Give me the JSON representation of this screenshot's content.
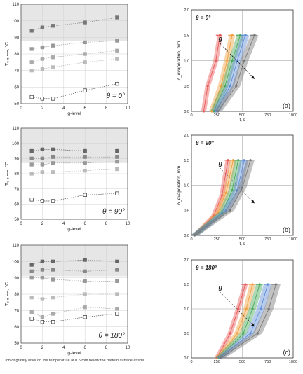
{
  "left_panels": [
    {
      "theta_label": "θ = 0°",
      "ylabel": "T₀.₅ ₘₘ, °C",
      "xlabel": "g-level",
      "yticks": [
        "50",
        "60",
        "70",
        "80",
        "90",
        "100",
        "110"
      ],
      "xticks": [
        "0",
        "2",
        "4",
        "6",
        "8",
        "10"
      ],
      "ylim": [
        50,
        110
      ],
      "xlim": [
        0,
        10
      ],
      "shade_from": 88,
      "series": [
        {
          "x": [
            1,
            2,
            3,
            6,
            9
          ],
          "y": [
            94,
            96,
            97,
            99,
            102
          ],
          "color": "#777777"
        },
        {
          "x": [
            1,
            2,
            3,
            6,
            9
          ],
          "y": [
            83,
            84,
            85,
            87,
            88
          ],
          "color": "#999999"
        },
        {
          "x": [
            1,
            2,
            3,
            6,
            9
          ],
          "y": [
            75,
            77,
            78,
            80,
            82
          ],
          "color": "#aaaaaa"
        },
        {
          "x": [
            1,
            2,
            3,
            6,
            9
          ],
          "y": [
            70,
            71,
            72,
            75,
            77
          ],
          "color": "#bbbbbb"
        },
        {
          "x": [
            1,
            2,
            3,
            6,
            9
          ],
          "y": [
            54,
            53,
            53,
            58,
            62
          ],
          "color": "#555555",
          "hollow": true
        }
      ]
    },
    {
      "theta_label": "θ = 90°",
      "ylabel": "T₀.₅ ₘₘ, °C",
      "xlabel": "g-level",
      "yticks": [
        "50",
        "60",
        "70",
        "80",
        "90",
        "100",
        "110"
      ],
      "xticks": [
        "0",
        "2",
        "4",
        "6",
        "8",
        "10"
      ],
      "ylim": [
        50,
        110
      ],
      "xlim": [
        0,
        10
      ],
      "shade_from": 87,
      "series": [
        {
          "x": [
            1,
            2,
            3,
            6,
            9
          ],
          "y": [
            95,
            96,
            96,
            95,
            95
          ],
          "color": "#666666"
        },
        {
          "x": [
            1,
            2,
            3,
            6,
            9
          ],
          "y": [
            90,
            90,
            91,
            91,
            91
          ],
          "color": "#888888"
        },
        {
          "x": [
            1,
            2,
            3,
            6,
            9
          ],
          "y": [
            86,
            86,
            87,
            87,
            88
          ],
          "color": "#999999"
        },
        {
          "x": [
            1,
            2,
            3,
            6,
            9
          ],
          "y": [
            80,
            81,
            81,
            82,
            83
          ],
          "color": "#bbbbbb"
        },
        {
          "x": [
            1,
            2,
            3,
            6,
            9
          ],
          "y": [
            63,
            62,
            62,
            66,
            67
          ],
          "color": "#555555",
          "hollow": true
        }
      ]
    },
    {
      "theta_label": "θ = 180°",
      "ylabel": "T₀.₅ ₘₘ, °C",
      "xlabel": "g-level",
      "yticks": [
        "50",
        "60",
        "70",
        "80",
        "90",
        "100",
        "110"
      ],
      "xticks": [
        "0",
        "2",
        "4",
        "6",
        "8",
        "10"
      ],
      "ylim": [
        50,
        110
      ],
      "xlim": [
        0,
        10
      ],
      "shade_from": 91,
      "series": [
        {
          "x": [
            1,
            2,
            3,
            6,
            9
          ],
          "y": [
            98,
            100,
            100,
            101,
            100
          ],
          "color": "#666666"
        },
        {
          "x": [
            1,
            2,
            3,
            6,
            9
          ],
          "y": [
            94,
            95,
            95,
            94,
            95
          ],
          "color": "#888888"
        },
        {
          "x": [
            1,
            2,
            3,
            6,
            9
          ],
          "y": [
            90,
            90,
            89,
            88,
            88
          ],
          "color": "#999999"
        },
        {
          "x": [
            1,
            2,
            3,
            6,
            9
          ],
          "y": [
            78,
            77,
            78,
            80,
            80
          ],
          "color": "#bbbbbb"
        },
        {
          "x": [
            1,
            2,
            3,
            6,
            9
          ],
          "y": [
            69,
            66,
            68,
            72,
            71
          ],
          "color": "#aaaaaa"
        },
        {
          "x": [
            1,
            2,
            3,
            6,
            9
          ],
          "y": [
            65,
            63,
            63,
            66,
            68
          ],
          "color": "#555555",
          "hollow": true
        }
      ]
    }
  ],
  "right_panels": [
    {
      "theta_label": "θ = 0°",
      "panel_label": "(a)",
      "ylabel": "δ_evaporation, mm",
      "xlabel": "t, s",
      "xticks": [
        "0",
        "250",
        "500",
        "750",
        "1000"
      ],
      "yticks": [
        "0.0",
        "0.5",
        "1.0",
        "1.5",
        "2.0"
      ],
      "xlim": [
        0,
        1000
      ],
      "ylim": [
        0,
        2
      ],
      "g_label": "g",
      "series": [
        {
          "color": "#e85a5a",
          "t": [
            120,
            160,
            240,
            280
          ],
          "d": [
            0,
            0.5,
            1,
            1.5
          ],
          "w": 25
        },
        {
          "color": "#f0a040",
          "t": [
            200,
            290,
            350,
            400
          ],
          "d": [
            0,
            0.5,
            1,
            1.5
          ],
          "w": 30
        },
        {
          "color": "#4aa85a",
          "t": [
            220,
            330,
            400,
            480
          ],
          "d": [
            0,
            0.5,
            1,
            1.5
          ],
          "w": 35
        },
        {
          "color": "#5f8fd8",
          "t": [
            240,
            380,
            450,
            530
          ],
          "d": [
            0,
            0.5,
            1,
            1.5
          ],
          "w": 40
        },
        {
          "color": "#777777",
          "t": [
            260,
            440,
            520,
            620
          ],
          "d": [
            0,
            0.5,
            1,
            1.5
          ],
          "w": 40
        }
      ]
    },
    {
      "theta_label": "θ = 90°",
      "panel_label": "(b)",
      "ylabel": "δ_evaporation, mm",
      "xlabel": "t, s",
      "xticks": [
        "0",
        "250",
        "500",
        "750",
        "1000"
      ],
      "yticks": [
        "0.0",
        "0.5",
        "1.0",
        "1.5",
        "2.0"
      ],
      "xlim": [
        0,
        1000
      ],
      "ylim": [
        0,
        2
      ],
      "g_label": "g",
      "series": [
        {
          "color": "#e85a5a",
          "t": [
            30,
            220,
            300,
            360
          ],
          "d": [
            0,
            0.4,
            0.8,
            1.5
          ],
          "w": 25
        },
        {
          "color": "#f0a040",
          "t": [
            30,
            260,
            340,
            410
          ],
          "d": [
            0,
            0.45,
            0.85,
            1.5
          ],
          "w": 30
        },
        {
          "color": "#4aa85a",
          "t": [
            30,
            300,
            400,
            460
          ],
          "d": [
            0,
            0.45,
            0.9,
            1.5
          ],
          "w": 35
        },
        {
          "color": "#5f8fd8",
          "t": [
            30,
            340,
            450,
            520
          ],
          "d": [
            0,
            0.5,
            0.9,
            1.5
          ],
          "w": 40
        },
        {
          "color": "#777777",
          "t": [
            30,
            380,
            500,
            580
          ],
          "d": [
            0,
            0.5,
            0.95,
            1.5
          ],
          "w": 40
        }
      ]
    },
    {
      "theta_label": "θ = 180°",
      "panel_label": "(c)",
      "ylabel": "",
      "xlabel": "",
      "xticks": [
        "0",
        "250",
        "500",
        "750",
        "1000"
      ],
      "yticks": [
        "0.0",
        "0.5",
        "1.0",
        "1.5",
        "2.0"
      ],
      "xlim": [
        0,
        1000
      ],
      "ylim": [
        0,
        2
      ],
      "g_label": "g",
      "series": [
        {
          "color": "#e85a5a",
          "t": [
            250,
            380,
            460,
            530
          ],
          "d": [
            0,
            0.5,
            1,
            1.5
          ],
          "w": 25
        },
        {
          "color": "#f0a040",
          "t": [
            260,
            450,
            540,
            600
          ],
          "d": [
            0,
            0.5,
            1,
            1.5
          ],
          "w": 30
        },
        {
          "color": "#4aa85a",
          "t": [
            270,
            510,
            600,
            670
          ],
          "d": [
            0,
            0.5,
            1,
            1.5
          ],
          "w": 35
        },
        {
          "color": "#5f8fd8",
          "t": [
            280,
            580,
            680,
            750
          ],
          "d": [
            0,
            0.5,
            1,
            1.5
          ],
          "w": 40
        },
        {
          "color": "#777777",
          "t": [
            290,
            650,
            760,
            830
          ],
          "d": [
            0,
            0.5,
            1,
            1.5
          ],
          "w": 45
        }
      ]
    }
  ],
  "caption": "…ion of gravity level on the temperature at 0.5 mm below the pattern surface at spe…"
}
